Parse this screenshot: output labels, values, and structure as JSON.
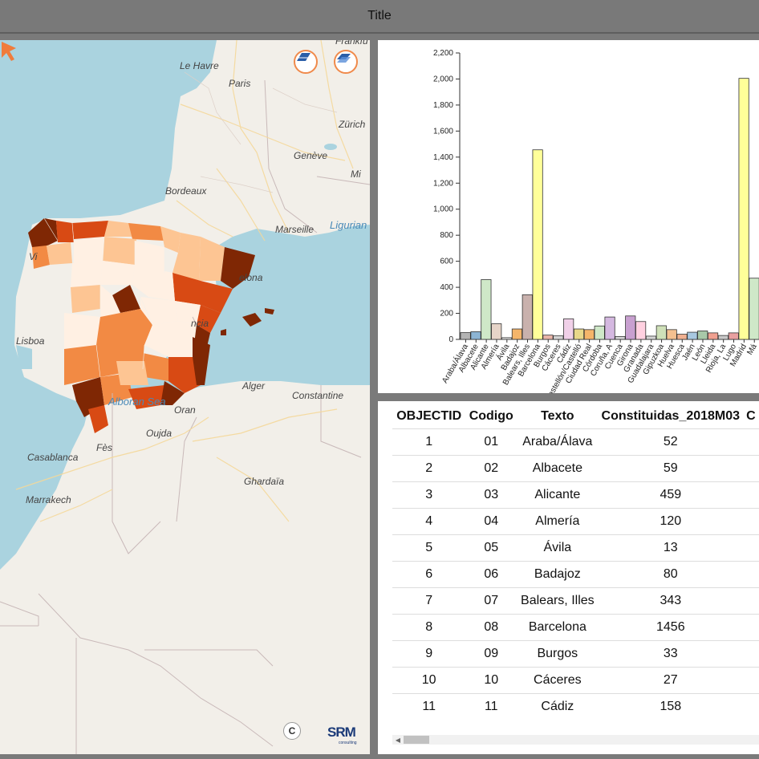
{
  "window": {
    "title": "Title"
  },
  "map": {
    "labels": {
      "frankfurt": "Frankfu",
      "le_havre": "Le Havre",
      "paris": "Paris",
      "zurich": "Zürich",
      "geneve": "Genève",
      "milano": "Mi",
      "bordeaux": "Bordeaux",
      "marseille": "Marseille",
      "ligurian": "Ligurian",
      "lisboa": "Lisboa",
      "barcelona": "elona",
      "valencia": "ncia",
      "alger": "Alger",
      "constantine": "Constantine",
      "alboran": "Alboran Sea",
      "oran": "Oran",
      "oujda": "Oujda",
      "casablanca": "Casablanca",
      "fes": "Fès",
      "ghardaia": "Ghardaïa",
      "marrakech": "Marrakech",
      "vigo": "Vi"
    },
    "buttons": {
      "basemap_icon": "layers-icon",
      "satellite_icon": "satellite-layers-icon"
    },
    "copyright": "C",
    "logo": {
      "text": "SRM",
      "sub": "consulting"
    },
    "colors": {
      "sea": "#aad3df",
      "land": "#f2efe9",
      "darkest": "#7f2704",
      "dark": "#d84a14",
      "mid": "#f28a44",
      "light": "#fdc593",
      "lightest": "#fff0e3"
    }
  },
  "chart_data": {
    "type": "bar",
    "categories": [
      "Araba/Álava",
      "Albacete",
      "Alicante",
      "Almería",
      "Ávila",
      "Badajoz",
      "Balears, Illes",
      "Barcelona",
      "Burgos",
      "Cáceres",
      "Cádiz",
      "Castellón/Castelló",
      "Ciudad Real",
      "Córdoba",
      "Coruña, A",
      "Cuenca",
      "Girona",
      "Granada",
      "Guadalajara",
      "Gipuzkoa",
      "Huelva",
      "Huesca",
      "Jaén",
      "León",
      "Lleida",
      "Rioja, La",
      "Lugo",
      "Madrid",
      "Má"
    ],
    "values": [
      52,
      59,
      459,
      120,
      13,
      80,
      343,
      1456,
      33,
      27,
      158,
      80,
      75,
      103,
      172,
      22,
      180,
      137,
      25,
      105,
      75,
      40,
      55,
      65,
      50,
      30,
      50,
      2005,
      470
    ],
    "colors": [
      "#b3b3b3",
      "#8cb4d4",
      "#cfe8c8",
      "#e6d4c8",
      "#e6e6e6",
      "#f5b56a",
      "#c9b1ad",
      "#ffff99",
      "#e8b4a8",
      "#d4d4d4",
      "#f0d0e8",
      "#e8d88a",
      "#f5b56a",
      "#cfe8c8",
      "#d4b8e0",
      "#d4d4d4",
      "#c8a0d0",
      "#ffd0e0",
      "#d4d4d4",
      "#cfe0b8",
      "#f5c090",
      "#f0b090",
      "#a8c8e0",
      "#a8c8a8",
      "#f0a090",
      "#c8c8c8",
      "#e8a0a0",
      "#ffff99",
      "#cfe8c8"
    ],
    "ylim": [
      0,
      2200
    ],
    "yticks": [
      "0",
      "200",
      "400",
      "600",
      "800",
      "1,000",
      "1,200",
      "1,400",
      "1,600",
      "1,800",
      "2,000",
      "2,200"
    ],
    "grid": false
  },
  "table": {
    "columns": [
      "OBJECTID",
      "Codigo",
      "Texto",
      "Constituidas_2018M03",
      "C"
    ],
    "rows": [
      [
        "1",
        "01",
        "Araba/Álava",
        "52"
      ],
      [
        "2",
        "02",
        "Albacete",
        "59"
      ],
      [
        "3",
        "03",
        "Alicante",
        "459"
      ],
      [
        "4",
        "04",
        "Almería",
        "120"
      ],
      [
        "5",
        "05",
        "Ávila",
        "13"
      ],
      [
        "6",
        "06",
        "Badajoz",
        "80"
      ],
      [
        "7",
        "07",
        "Balears, Illes",
        "343"
      ],
      [
        "8",
        "08",
        "Barcelona",
        "1456"
      ],
      [
        "9",
        "09",
        "Burgos",
        "33"
      ],
      [
        "10",
        "10",
        "Cáceres",
        "27"
      ],
      [
        "11",
        "11",
        "Cádiz",
        "158"
      ]
    ]
  }
}
